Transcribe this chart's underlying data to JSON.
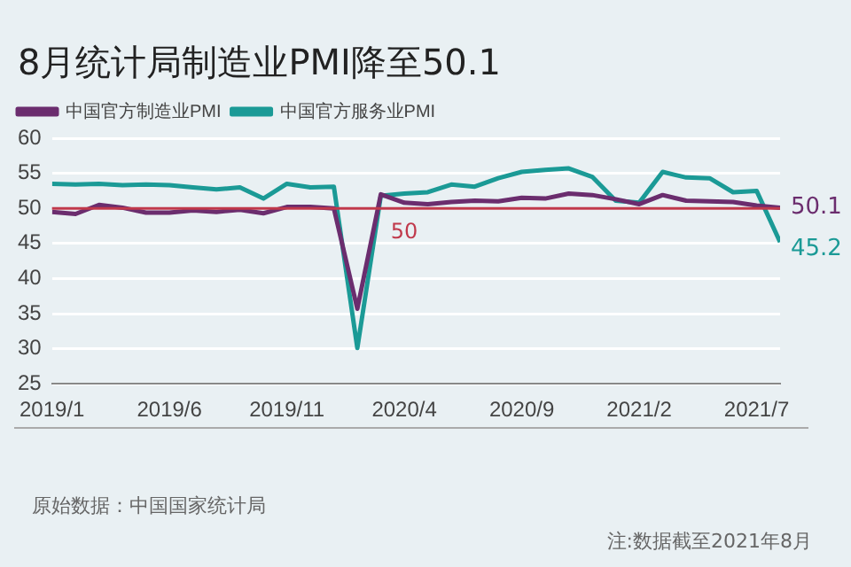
{
  "chart_data": {
    "type": "line",
    "title": "8月统计局制造业PMI降至50.1",
    "x": [
      "2019-01",
      "2019-02",
      "2019-03",
      "2019-04",
      "2019-05",
      "2019-06",
      "2019-07",
      "2019-08",
      "2019-09",
      "2019-10",
      "2019-11",
      "2019-12",
      "2020-01",
      "2020-02",
      "2020-03",
      "2020-04",
      "2020-05",
      "2020-06",
      "2020-07",
      "2020-08",
      "2020-09",
      "2020-10",
      "2020-11",
      "2020-12",
      "2021-01",
      "2021-02",
      "2021-03",
      "2021-04",
      "2021-05",
      "2021-06",
      "2021-07",
      "2021-08"
    ],
    "series": [
      {
        "name": "中国官方制造业PMI",
        "color": "#6b2d6e",
        "values": [
          49.5,
          49.2,
          50.5,
          50.1,
          49.4,
          49.4,
          49.7,
          49.5,
          49.8,
          49.3,
          50.2,
          50.2,
          50.0,
          35.7,
          52.0,
          50.8,
          50.6,
          50.9,
          51.1,
          51.0,
          51.5,
          51.4,
          52.1,
          51.9,
          51.3,
          50.6,
          51.9,
          51.1,
          51.0,
          50.9,
          50.4,
          50.1
        ]
      },
      {
        "name": "中国官方服务业PMI",
        "color": "#1b9a96",
        "values": [
          53.5,
          53.4,
          53.5,
          53.3,
          53.4,
          53.3,
          53.0,
          52.7,
          53.0,
          51.4,
          53.5,
          53.0,
          53.1,
          30.1,
          51.8,
          52.1,
          52.3,
          53.4,
          53.1,
          54.3,
          55.2,
          55.5,
          55.7,
          54.5,
          51.1,
          50.8,
          55.2,
          54.4,
          54.3,
          52.3,
          52.5,
          45.2
        ]
      }
    ],
    "xlim": [
      "2019-01",
      "2021-08"
    ],
    "xticks": [
      {
        "value": "2019-01",
        "label": "2019/1"
      },
      {
        "value": "2019-06",
        "label": "2019/6"
      },
      {
        "value": "2019-11",
        "label": "2019/11"
      },
      {
        "value": "2020-04",
        "label": "2020/4"
      },
      {
        "value": "2020-09",
        "label": "2020/9"
      },
      {
        "value": "2021-02",
        "label": "2021/2"
      },
      {
        "value": "2021-07",
        "label": "2021/7"
      }
    ],
    "ylim": [
      25,
      60
    ],
    "yticks": [
      25,
      30,
      35,
      40,
      45,
      50,
      55,
      60
    ],
    "ref_lines": [
      {
        "axis": "y",
        "value": 50,
        "label": "50",
        "color": "#c0394b"
      }
    ],
    "annotations": [
      {
        "text": "50.1",
        "x": "2021-08",
        "y": 50.1
      },
      {
        "text": "45.2",
        "x": "2021-08",
        "y": 45.2
      },
      "原始数据：中国国家统计局",
      "注:数据截至2021年8月"
    ],
    "grid": "y",
    "legend": "top",
    "marker": "none",
    "line_style": "solid"
  }
}
